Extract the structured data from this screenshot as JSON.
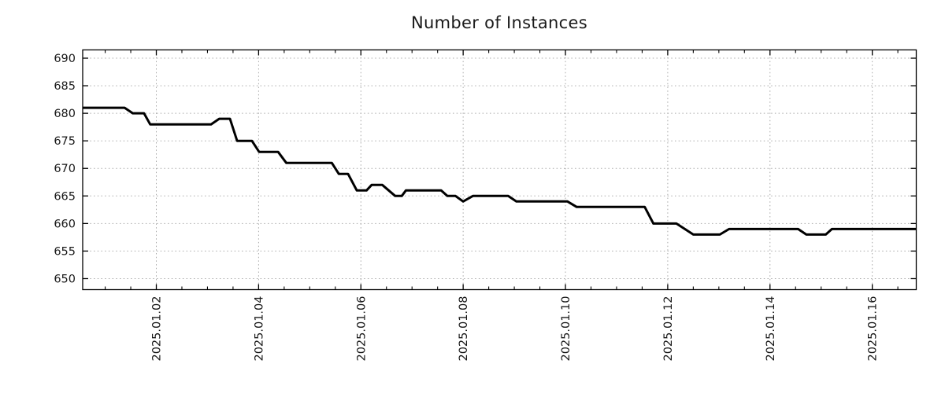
{
  "title": "Number of Instances",
  "colors": {
    "background": "#ffffff",
    "line": "#000000",
    "grid": "#a9a9a9",
    "axis": "#000000",
    "text": "#1a1a1a"
  },
  "chart_data": {
    "type": "line",
    "title": "Number of Instances",
    "xlabel": "",
    "ylabel": "",
    "legend": false,
    "grid": "dotted",
    "x_axis": {
      "kind": "time",
      "units": "days relative to 2025-01-02 00:00",
      "lim": [
        -1.44,
        14.86
      ],
      "major_ticks": [
        {
          "t": 0,
          "label": "2025.01.02"
        },
        {
          "t": 2,
          "label": "2025.01.04"
        },
        {
          "t": 4,
          "label": "2025.01.06"
        },
        {
          "t": 6,
          "label": "2025.01.08"
        },
        {
          "t": 8,
          "label": "2025.01.10"
        },
        {
          "t": 10,
          "label": "2025.01.12"
        },
        {
          "t": 12,
          "label": "2025.01.14"
        },
        {
          "t": 14,
          "label": "2025.01.16"
        }
      ],
      "minor_tick_interval": 0.5,
      "tick_label_rotation_deg": -90
    },
    "y_axis": {
      "lim": [
        648,
        691.5
      ],
      "major_ticks": [
        650,
        655,
        660,
        665,
        670,
        675,
        680,
        685,
        690
      ]
    },
    "series": [
      {
        "name": "instances",
        "color": "#000000",
        "stroke_width": 3,
        "points": [
          [
            -1.44,
            681
          ],
          [
            -0.62,
            681
          ],
          [
            -0.46,
            680
          ],
          [
            -0.24,
            680
          ],
          [
            -0.12,
            678
          ],
          [
            1.07,
            678
          ],
          [
            1.23,
            679
          ],
          [
            1.44,
            679
          ],
          [
            1.58,
            675
          ],
          [
            1.87,
            675
          ],
          [
            2.01,
            673
          ],
          [
            2.38,
            673
          ],
          [
            2.54,
            671
          ],
          [
            3.43,
            671
          ],
          [
            3.57,
            669
          ],
          [
            3.75,
            669
          ],
          [
            3.92,
            666
          ],
          [
            4.11,
            666
          ],
          [
            4.21,
            667
          ],
          [
            4.42,
            667
          ],
          [
            4.67,
            665
          ],
          [
            4.8,
            665
          ],
          [
            4.88,
            666
          ],
          [
            5.57,
            666
          ],
          [
            5.69,
            665
          ],
          [
            5.85,
            665
          ],
          [
            6.0,
            664
          ],
          [
            6.19,
            665
          ],
          [
            6.88,
            665
          ],
          [
            7.04,
            664
          ],
          [
            8.04,
            664
          ],
          [
            8.22,
            663
          ],
          [
            9.55,
            663
          ],
          [
            9.72,
            660
          ],
          [
            10.17,
            660
          ],
          [
            10.5,
            658
          ],
          [
            11.02,
            658
          ],
          [
            11.2,
            659
          ],
          [
            12.55,
            659
          ],
          [
            12.71,
            658
          ],
          [
            13.09,
            658
          ],
          [
            13.21,
            659
          ],
          [
            14.86,
            659
          ]
        ]
      }
    ]
  }
}
